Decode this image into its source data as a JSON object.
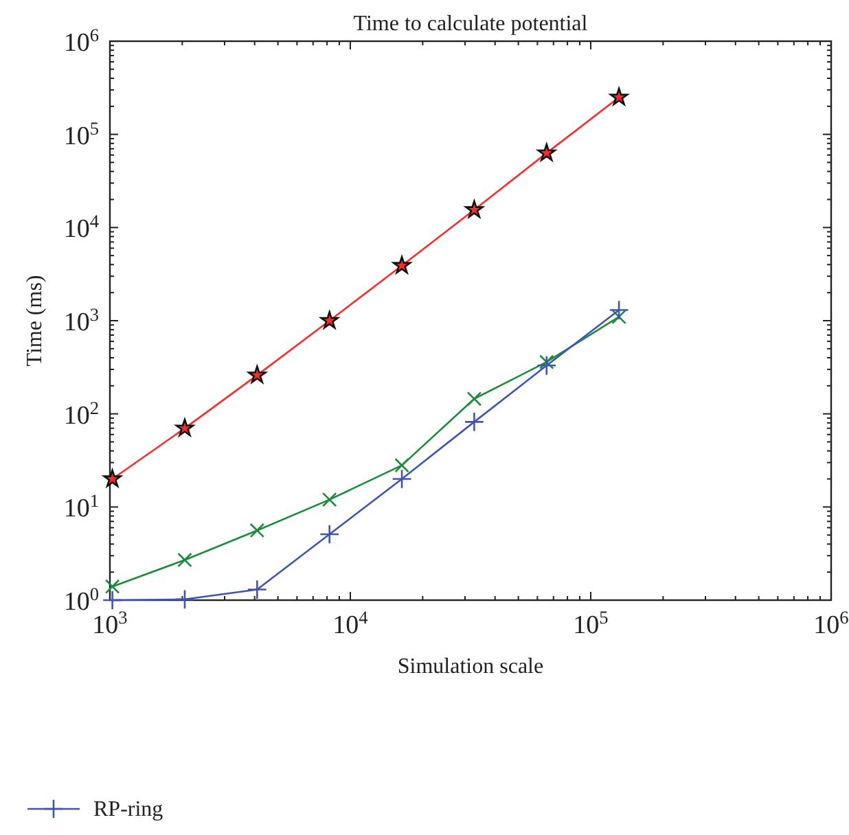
{
  "chart_data": {
    "type": "line",
    "title": "Time to calculate potential",
    "xlabel": "Simulation scale",
    "ylabel": "Time (ms)",
    "log": "xy",
    "xlim": [
      1000,
      1000000
    ],
    "ylim": [
      1,
      1000000
    ],
    "xticks": [
      {
        "value": 1000,
        "label": "10$^{3}$"
      },
      {
        "value": 10000,
        "label": "10$^{4}$"
      },
      {
        "value": 100000,
        "label": "10$^{5}$"
      },
      {
        "value": 1000000,
        "label": "10$^{6}$"
      }
    ],
    "yticks": [
      {
        "value": 1,
        "label": "10$^{0}$"
      },
      {
        "value": 10,
        "label": "10$^{1}$"
      },
      {
        "value": 100,
        "label": "10$^{2}$"
      },
      {
        "value": 1000,
        "label": "10$^{3}$"
      },
      {
        "value": 10000,
        "label": "10$^{4}$"
      },
      {
        "value": 100000,
        "label": "10$^{5}$"
      },
      {
        "value": 1000000,
        "label": "10$^{6}$"
      }
    ],
    "x": [
      1024,
      2048,
      4096,
      8192,
      16384,
      32768,
      65536,
      131072
    ],
    "series": [
      {
        "color": "#ff2a2a",
        "marker": "star",
        "values": [
          20,
          70,
          260,
          1000,
          3900,
          15500,
          63000,
          250000
        ]
      },
      {
        "color": "#1e8a3c",
        "marker": "cross",
        "values": [
          1.4,
          2.7,
          5.6,
          12,
          28,
          145,
          360,
          1100
        ]
      },
      {
        "name": "RP-ring",
        "color": "#3f55b0",
        "marker": "plus",
        "values": [
          1.0,
          1.02,
          1.3,
          5.1,
          20,
          82,
          330,
          1300
        ]
      }
    ],
    "grid": false,
    "legend": "bottom",
    "line_style": "solid"
  }
}
